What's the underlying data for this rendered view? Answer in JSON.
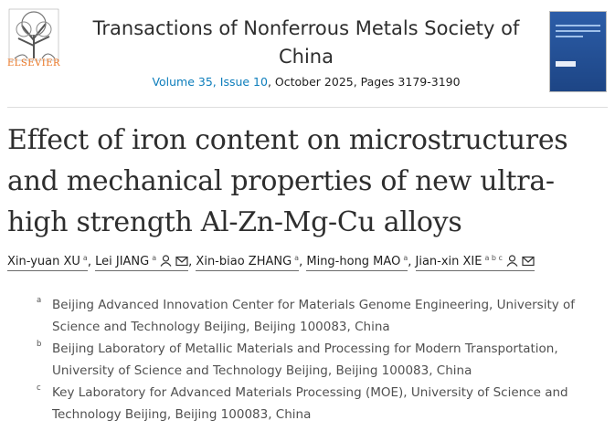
{
  "header": {
    "publisher": "ELSEVIER",
    "journal": "Transactions of Nonferrous Metals Society of China",
    "volume_issue": "Volume 35, Issue 10",
    "date_pages": ", October 2025, Pages 3179-3190"
  },
  "article": {
    "title": "Effect of iron content on microstructures and mechanical properties of new ultra-high strength Al-Zn-Mg-Cu alloys"
  },
  "author_separator": ",",
  "authors": [
    {
      "name": "Xin-yuan XU",
      "aff": "a",
      "corresponding": false
    },
    {
      "name": "Lei JIANG",
      "aff": "a",
      "corresponding": true
    },
    {
      "name": "Xin-biao ZHANG",
      "aff": "a",
      "corresponding": false
    },
    {
      "name": "Ming-hong MAO",
      "aff": "a",
      "corresponding": false
    },
    {
      "name": "Jian-xin XIE",
      "aff": "a b c",
      "corresponding": true
    }
  ],
  "affiliations": [
    {
      "label": "a",
      "text": "Beijing Advanced Innovation Center for Materials Genome Engineering, University of Science and Technology Beijing, Beijing 100083, China"
    },
    {
      "label": "b",
      "text": "Beijing Laboratory of Metallic Materials and Processing for Modern Transportation, University of Science and Technology Beijing, Beijing 100083, China"
    },
    {
      "label": "c",
      "text": "Key Laboratory for Advanced Materials Processing (MOE), University of Science and Technology Beijing, Beijing 100083, China"
    }
  ]
}
